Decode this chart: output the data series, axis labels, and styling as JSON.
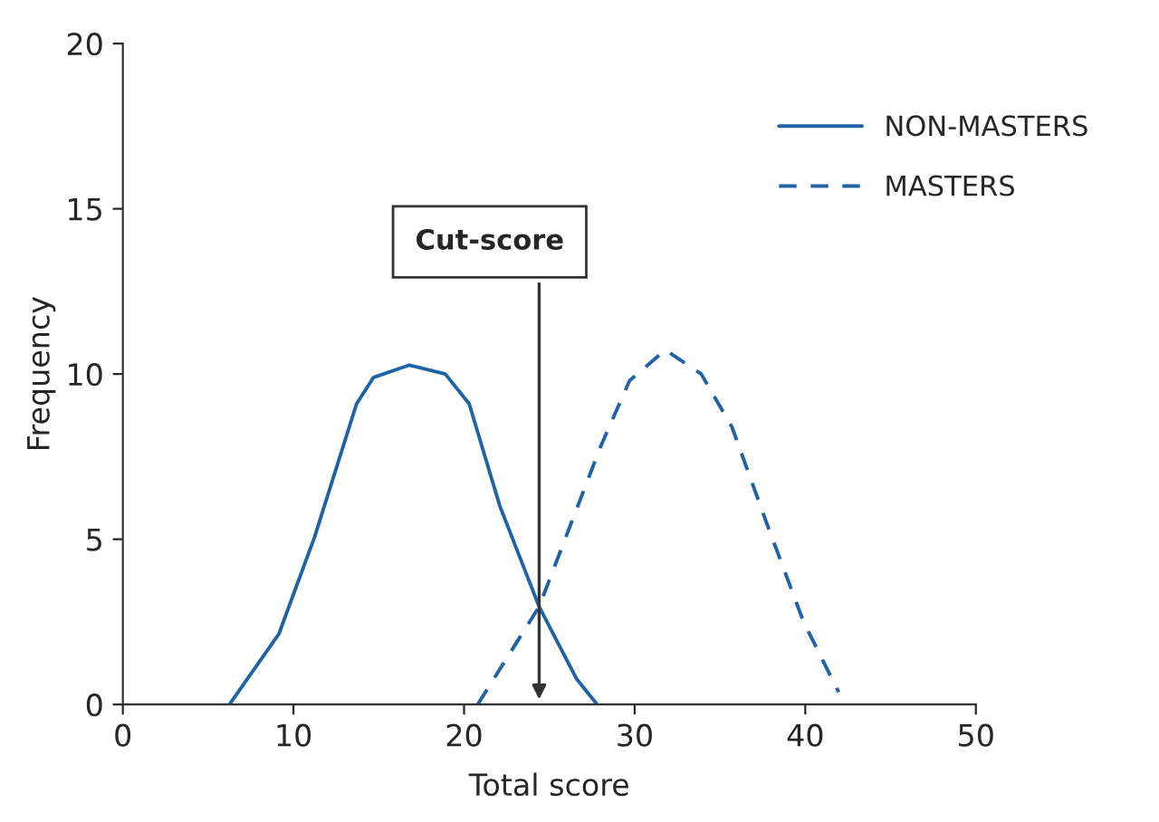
{
  "chart_data": {
    "type": "line",
    "xlabel": "Total score",
    "ylabel": "Frequency",
    "xlim": [
      0,
      50
    ],
    "xticks": [
      0,
      10,
      20,
      30,
      40,
      50
    ],
    "ylim": [
      0,
      20
    ],
    "yticks": [
      0,
      5,
      10,
      15,
      20
    ],
    "grid": false,
    "legend": "top right",
    "marker": "none",
    "series": [
      {
        "name": "NON-MASTERS",
        "color": "#1f63a6",
        "line_style": "solid",
        "x": [
          6.25,
          9.15,
          11.24,
          13.7,
          14.7,
          16.8,
          18.9,
          20.3,
          22.1,
          24.4,
          26.6,
          27.8
        ],
        "values": [
          0,
          2.14,
          5.07,
          9.1,
          9.9,
          10.27,
          10.0,
          9.1,
          6.0,
          2.96,
          0.77,
          0
        ]
      },
      {
        "name": "MASTERS",
        "color": "#1f63a6",
        "line_style": "dashed",
        "x": [
          20.8,
          24.4,
          28.0,
          29.7,
          31.8,
          33.9,
          35.7,
          37.8,
          39.9,
          41.96
        ],
        "values": [
          0,
          2.96,
          7.8,
          9.8,
          10.73,
          10.0,
          8.4,
          5.4,
          2.5,
          0.37
        ]
      }
    ],
    "ref_lines": [
      {
        "axis": "x",
        "value": 24.4,
        "label": "Cut-score",
        "color": "#333333"
      }
    ]
  }
}
